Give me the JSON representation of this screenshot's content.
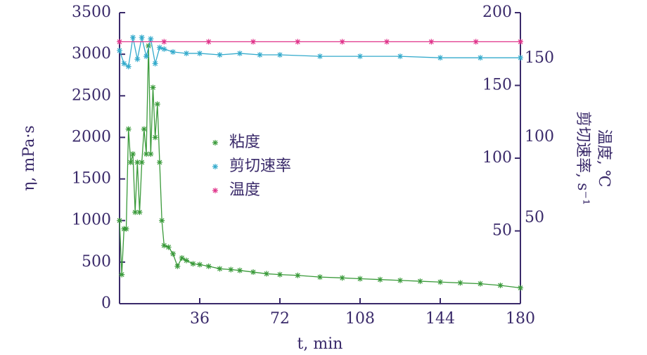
{
  "chart_data": {
    "type": "line",
    "x_label": "t, min",
    "y_label": "η, mPa·s",
    "y2_label": "剪切速率, s⁻¹",
    "y2_label_2": "温度, ℃",
    "xlim": [
      0,
      180
    ],
    "xticks": [
      36,
      72,
      108,
      144,
      180
    ],
    "ylim": [
      0,
      3500
    ],
    "yticks": [
      0,
      500,
      1000,
      1500,
      2000,
      2500,
      3000,
      3500
    ],
    "y2lim": [
      0,
      200
    ],
    "y2ticks": [
      50,
      100,
      150,
      200
    ],
    "y2_extra_labels": [
      "150",
      "100",
      "50"
    ],
    "legend": "center",
    "series": [
      {
        "name": "粘度",
        "color": "#3a9a3a",
        "axis": "y",
        "x": [
          0,
          1,
          2,
          3,
          4,
          5,
          6,
          7,
          8,
          9,
          10,
          11,
          12,
          13,
          14,
          15,
          16,
          17,
          18,
          19,
          20,
          22,
          24,
          26,
          28,
          30,
          33,
          36,
          40,
          45,
          50,
          54,
          60,
          66,
          72,
          80,
          90,
          100,
          108,
          117,
          126,
          135,
          144,
          153,
          162,
          171,
          180
        ],
        "values": [
          1000,
          350,
          900,
          900,
          2100,
          1700,
          1800,
          1100,
          1700,
          1100,
          1700,
          2100,
          1800,
          3100,
          1800,
          2600,
          2000,
          2400,
          1700,
          1000,
          700,
          680,
          600,
          450,
          550,
          520,
          480,
          470,
          450,
          420,
          410,
          400,
          380,
          360,
          350,
          340,
          320,
          310,
          300,
          290,
          280,
          270,
          260,
          250,
          240,
          220,
          190
        ]
      },
      {
        "name": "剪切速率",
        "color": "#33aacc",
        "axis": "y2",
        "x": [
          0,
          2,
          4,
          6,
          8,
          10,
          12,
          14,
          16,
          18,
          20,
          24,
          30,
          36,
          45,
          54,
          63,
          72,
          90,
          108,
          126,
          144,
          162,
          180
        ],
        "values": [
          174,
          165,
          163,
          183,
          168,
          183,
          170,
          182,
          165,
          176,
          175,
          173,
          172,
          172,
          171,
          172,
          171,
          171,
          170,
          170,
          170,
          169,
          169,
          169
        ]
      },
      {
        "name": "温度",
        "color": "#e0338a",
        "axis": "y2",
        "x": [
          0,
          20,
          40,
          60,
          80,
          100,
          120,
          140,
          160,
          180
        ],
        "values": [
          180,
          180,
          180,
          180,
          180,
          180,
          180,
          180,
          180,
          180
        ]
      }
    ]
  }
}
